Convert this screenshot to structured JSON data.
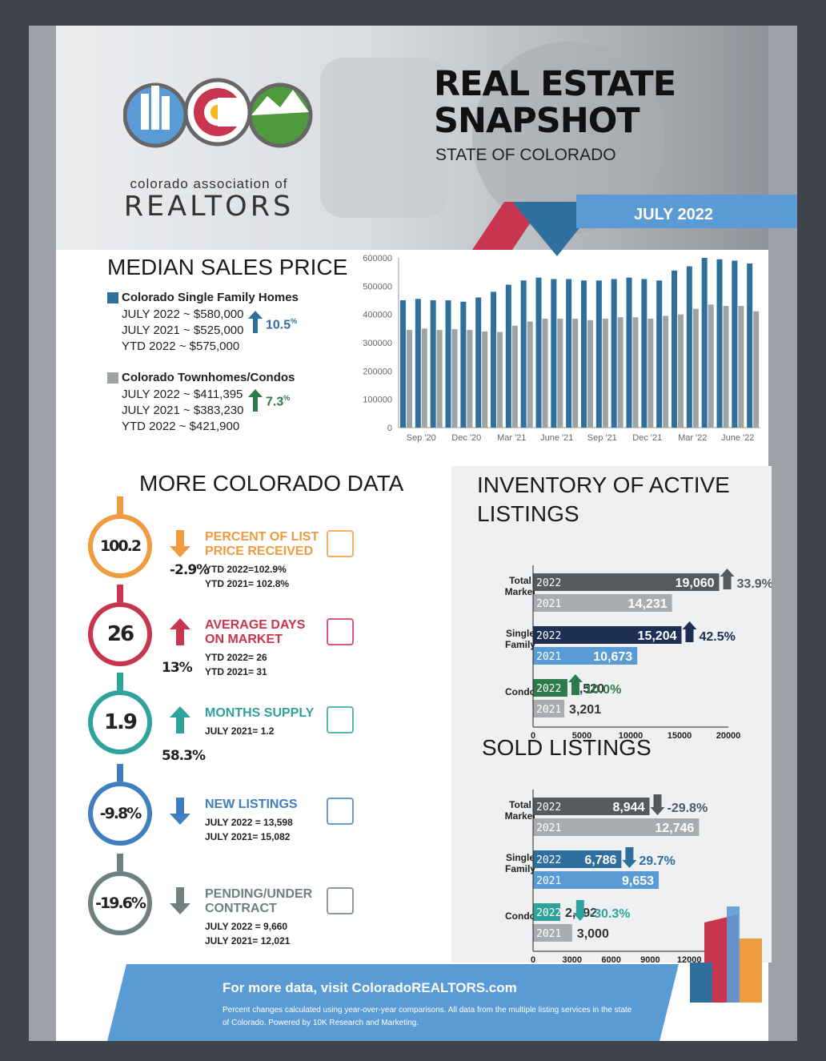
{
  "org": {
    "line1": "colorado association of",
    "line2": "REALTORS"
  },
  "header": {
    "title_line1": "REAL ESTATE",
    "title_line2": "SNAPSHOT",
    "subtitle": "STATE OF COLORADO",
    "period": "JULY 2022"
  },
  "median": {
    "heading": "MEDIAN SALES PRICE",
    "single": {
      "title": "Colorado Single Family Homes",
      "lines": [
        "JULY 2022 ~ $580,000",
        "JULY 2021 ~ $525,000",
        "YTD 2022 ~ $575,000"
      ],
      "change": "10.5",
      "change_unit": "%"
    },
    "condo": {
      "title": "Colorado Townhomes/Condos",
      "lines": [
        "JULY 2022 ~ $411,395",
        "JULY 2021 ~ $383,230",
        "YTD 2022 ~ $421,900"
      ],
      "change": "7.3",
      "change_unit": "%"
    }
  },
  "more": {
    "heading": "MORE COLORADO DATA",
    "metrics": [
      {
        "value": "100.2",
        "label1": "PERCENT OF LIST",
        "label2": "PRICE RECEIVED",
        "pct": "-2.9%",
        "sub1": "YTD 2022=102.9%",
        "sub2": "YTD 2021= 102.8%",
        "direction": "down",
        "color": "#ef9b3f",
        "icon": "percent-icon"
      },
      {
        "value": "26",
        "label1": "AVERAGE DAYS",
        "label2": "ON MARKET",
        "pct": "13%",
        "sub1": "YTD 2022= 26",
        "sub2": "YTD 2021= 31",
        "direction": "up",
        "color": "#c8354f",
        "icon": "calendar-icon"
      },
      {
        "value": "1.9",
        "label1": "MONTHS SUPPLY",
        "label2": "",
        "pct": "58.3%",
        "sub1": "JULY 2021= 1.2",
        "sub2": "",
        "direction": "up",
        "color": "#2fa39b",
        "icon": "refresh-icon"
      },
      {
        "value": "-9.8%",
        "label1": "NEW LISTINGS",
        "label2": "",
        "pct": "",
        "sub1": "JULY 2022 = 13,598",
        "sub2": "JULY 2021= 15,082",
        "direction": "down",
        "color": "#3f7fc0",
        "icon": "chart-icon"
      },
      {
        "value": "-19.6%",
        "label1": "PENDING/UNDER",
        "label2": "CONTRACT",
        "pct": "",
        "sub1": "JULY 2022 = 9,660",
        "sub2": "JULY 2021= 12,021",
        "direction": "down",
        "color": "#6f8080",
        "icon": "document-icon"
      }
    ]
  },
  "inventory": {
    "heading_line1": "INVENTORY OF ACTIVE",
    "heading_line2": "LISTINGS"
  },
  "sold": {
    "heading": "SOLD LISTINGS"
  },
  "footer": {
    "headline": "For more data, visit ColoradoREALTORS.com",
    "note": "Percent changes calculated using year-over-year comparisons. All data from the multiple listing services in the state of Colorado. Powered by 10K Research and Marketing."
  },
  "colors": {
    "sf_blue": "#2e6f9e",
    "condo_gray": "#9ea3a3",
    "accent_blue": "#5b9bd5",
    "red": "#c8354f"
  },
  "chart_data": [
    {
      "type": "bar",
      "title": "",
      "x_tick_labels": [
        "Sep '20",
        "Dec '20",
        "Mar '21",
        "June '21",
        "Sep '21",
        "Dec '21",
        "Mar '22",
        "June '22"
      ],
      "ylim": [
        0,
        600000
      ],
      "y_ticks": [
        0,
        100000,
        200000,
        300000,
        400000,
        500000,
        600000
      ],
      "categories": [
        "Aug '20",
        "Sep '20",
        "Oct '20",
        "Nov '20",
        "Dec '20",
        "Jan '21",
        "Feb '21",
        "Mar '21",
        "Apr '21",
        "May '21",
        "June '21",
        "Jul '21",
        "Aug '21",
        "Sep '21",
        "Oct '21",
        "Nov '21",
        "Dec '21",
        "Jan '22",
        "Feb '22",
        "Mar '22",
        "Apr '22",
        "May '22",
        "June '22",
        "Jul '22"
      ],
      "series": [
        {
          "name": "Colorado Single Family Homes",
          "color": "#2e6f9e",
          "values": [
            450000,
            455000,
            450000,
            450000,
            445000,
            460000,
            480000,
            505000,
            520000,
            530000,
            525000,
            525000,
            520000,
            520000,
            525000,
            530000,
            525000,
            520000,
            555000,
            570000,
            600000,
            595000,
            590000,
            580000
          ]
        },
        {
          "name": "Colorado Townhomes/Condos",
          "color": "#9ea3a3",
          "values": [
            345000,
            350000,
            345000,
            348000,
            345000,
            340000,
            338000,
            360000,
            375000,
            385000,
            385000,
            385000,
            380000,
            385000,
            390000,
            390000,
            385000,
            395000,
            400000,
            420000,
            435000,
            430000,
            430000,
            411000
          ]
        }
      ]
    },
    {
      "type": "bar",
      "title": "INVENTORY OF ACTIVE LISTINGS",
      "orientation": "horizontal",
      "xlim": [
        0,
        20000
      ],
      "x_ticks": [
        0,
        5000,
        10000,
        15000,
        20000
      ],
      "groups": [
        {
          "label": "Total Market",
          "y2022": 19060,
          "y2021": 14231,
          "y2022_label": "19,060",
          "y2021_label": "14,231",
          "change": "33.9",
          "direction": "up",
          "c2022": "#555a5e",
          "c2021": "#a9acae"
        },
        {
          "label": "Single Family",
          "y2022": 15204,
          "y2021": 10673,
          "y2022_label": "15,204",
          "y2021_label": "10,673",
          "change": "42.5",
          "direction": "up",
          "c2022": "#1e2f55",
          "c2021": "#5b9bd5"
        },
        {
          "label": "Condo",
          "y2022": 3520,
          "y2021": 3201,
          "y2022_label": "3,520",
          "y2021_label": "3,201",
          "change": "10.0",
          "direction": "up",
          "c2022": "#2e7a4b",
          "c2021": "#a9acae"
        }
      ],
      "year_labels": [
        "2022",
        "2021"
      ]
    },
    {
      "type": "bar",
      "title": "SOLD LISTINGS",
      "orientation": "horizontal",
      "xlim": [
        0,
        15000
      ],
      "x_ticks": [
        0,
        3000,
        6000,
        9000,
        12000,
        15000
      ],
      "groups": [
        {
          "label": "Total Market",
          "y2022": 8944,
          "y2021": 12746,
          "y2022_label": "8,944",
          "y2021_label": "12,746",
          "change": "-29.8",
          "direction": "down",
          "c2022": "#555a5e",
          "c2021": "#a9acae"
        },
        {
          "label": "Single Family",
          "y2022": 6786,
          "y2021": 9653,
          "y2022_label": "6,786",
          "y2021_label": "9,653",
          "change": "29.7",
          "direction": "down",
          "c2022": "#2e6f9e",
          "c2021": "#5b9bd5"
        },
        {
          "label": "Condo",
          "y2022": 2092,
          "y2021": 3000,
          "y2022_label": "2,092",
          "y2021_label": "3,000",
          "change": "-30.3",
          "direction": "down",
          "c2022": "#2fa39b",
          "c2021": "#a9acae"
        }
      ],
      "year_labels": [
        "2022",
        "2021"
      ]
    }
  ]
}
